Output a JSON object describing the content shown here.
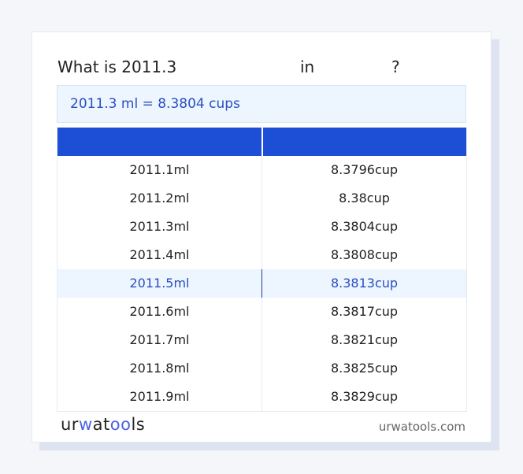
{
  "title": {
    "prefix": "What is 2011.3",
    "middle": "in",
    "suffix": "?"
  },
  "result": "2011.3 ml = 8.3804 cups",
  "table": {
    "headers": [
      "",
      ""
    ],
    "highlight_index": 4,
    "rows": [
      [
        "2011.1ml",
        "8.3796cup"
      ],
      [
        "2011.2ml",
        "8.38cup"
      ],
      [
        "2011.3ml",
        "8.3804cup"
      ],
      [
        "2011.4ml",
        "8.3808cup"
      ],
      [
        "2011.5ml",
        "8.3813cup"
      ],
      [
        "2011.6ml",
        "8.3817cup"
      ],
      [
        "2011.7ml",
        "8.3821cup"
      ],
      [
        "2011.8ml",
        "8.3825cup"
      ],
      [
        "2011.9ml",
        "8.3829cup"
      ]
    ]
  },
  "footer": {
    "logo": "urwatools",
    "site": "urwatools.com"
  },
  "colors": {
    "accent": "#1d4fd6",
    "highlight_bg": "#edf5fe",
    "highlight_text": "#2a4fc2"
  }
}
